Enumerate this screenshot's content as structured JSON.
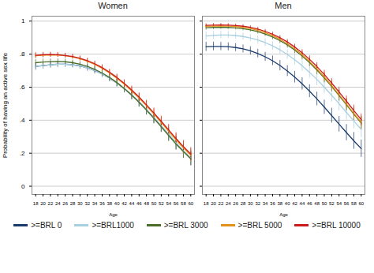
{
  "chart_data": [
    {
      "type": "line",
      "title": "Women",
      "xlabel": "Age",
      "ylabel": "Probability of having an active sex life",
      "x": [
        18,
        20,
        22,
        24,
        26,
        28,
        30,
        32,
        34,
        36,
        38,
        40,
        42,
        44,
        46,
        48,
        50,
        52,
        54,
        56,
        58,
        60
      ],
      "xlim": [
        17,
        61
      ],
      "xticks": [
        18,
        20,
        22,
        24,
        26,
        28,
        30,
        32,
        34,
        36,
        38,
        40,
        42,
        44,
        46,
        48,
        50,
        52,
        54,
        56,
        58,
        60
      ],
      "ylim": [
        -0.05,
        1.03
      ],
      "yticks": [
        0,
        {
          "value": 0.2,
          "label": ".2"
        },
        {
          "value": 0.4,
          "label": ".4"
        },
        {
          "value": 0.6,
          "label": ".6"
        },
        {
          "value": 0.8,
          "label": ".8"
        },
        1
      ],
      "grid": true,
      "legend": "bottom",
      "series": [
        {
          "name": ">=BRL 0",
          "color": "#1a3a6b",
          "values": [
            0.726,
            0.731,
            0.736,
            0.739,
            0.739,
            0.736,
            0.729,
            0.717,
            0.701,
            0.68,
            0.655,
            0.625,
            0.591,
            0.552,
            0.51,
            0.464,
            0.415,
            0.364,
            0.313,
            0.262,
            0.213,
            0.169
          ],
          "errors": [
            0.022,
            0.02,
            0.019,
            0.018,
            0.018,
            0.018,
            0.018,
            0.019,
            0.02,
            0.021,
            0.022,
            0.023,
            0.025,
            0.027,
            0.029,
            0.031,
            0.033,
            0.035,
            0.037,
            0.039,
            0.041,
            0.043
          ]
        },
        {
          "name": ">=BRL1000",
          "color": "#a8cfe0",
          "values": [
            0.726,
            0.731,
            0.736,
            0.739,
            0.739,
            0.736,
            0.729,
            0.717,
            0.701,
            0.68,
            0.655,
            0.625,
            0.591,
            0.552,
            0.51,
            0.464,
            0.415,
            0.364,
            0.313,
            0.262,
            0.213,
            0.169
          ],
          "errors": [
            0.022,
            0.02,
            0.019,
            0.018,
            0.018,
            0.018,
            0.018,
            0.019,
            0.02,
            0.021,
            0.022,
            0.023,
            0.025,
            0.027,
            0.029,
            0.031,
            0.033,
            0.035,
            0.037,
            0.039,
            0.041,
            0.043
          ]
        },
        {
          "name": ">=BRL 3000",
          "color": "#4a6e2a",
          "values": [
            0.748,
            0.752,
            0.755,
            0.756,
            0.754,
            0.748,
            0.739,
            0.726,
            0.708,
            0.686,
            0.659,
            0.628,
            0.592,
            0.552,
            0.508,
            0.461,
            0.411,
            0.36,
            0.307,
            0.256,
            0.209,
            0.166
          ],
          "errors": [
            0.02,
            0.018,
            0.017,
            0.016,
            0.016,
            0.016,
            0.016,
            0.017,
            0.018,
            0.019,
            0.02,
            0.022,
            0.024,
            0.026,
            0.028,
            0.03,
            0.032,
            0.034,
            0.036,
            0.038,
            0.04,
            0.042
          ]
        },
        {
          "name": ">=BRL 5000",
          "color": "#e0921a",
          "values": [
            0.79,
            0.793,
            0.795,
            0.794,
            0.79,
            0.783,
            0.772,
            0.757,
            0.738,
            0.714,
            0.686,
            0.654,
            0.618,
            0.577,
            0.534,
            0.487,
            0.437,
            0.386,
            0.333,
            0.281,
            0.232,
            0.187
          ],
          "errors": [
            0.016,
            0.015,
            0.014,
            0.014,
            0.014,
            0.014,
            0.014,
            0.015,
            0.016,
            0.017,
            0.018,
            0.02,
            0.022,
            0.024,
            0.026,
            0.028,
            0.03,
            0.032,
            0.034,
            0.036,
            0.038,
            0.04
          ]
        },
        {
          "name": ">=BRL 10000",
          "color": "#cc1a1a",
          "values": [
            0.793,
            0.796,
            0.797,
            0.796,
            0.792,
            0.786,
            0.775,
            0.761,
            0.742,
            0.719,
            0.691,
            0.659,
            0.623,
            0.583,
            0.54,
            0.493,
            0.444,
            0.393,
            0.341,
            0.289,
            0.24,
            0.195
          ],
          "errors": [
            0.016,
            0.015,
            0.014,
            0.014,
            0.014,
            0.014,
            0.014,
            0.015,
            0.016,
            0.017,
            0.018,
            0.02,
            0.022,
            0.024,
            0.026,
            0.028,
            0.03,
            0.032,
            0.034,
            0.036,
            0.038,
            0.04
          ]
        }
      ]
    },
    {
      "type": "line",
      "title": "Men",
      "xlabel": "Age",
      "x": [
        18,
        20,
        22,
        24,
        26,
        28,
        30,
        32,
        34,
        36,
        38,
        40,
        42,
        44,
        46,
        48,
        50,
        52,
        54,
        56,
        58,
        60
      ],
      "xlim": [
        17,
        61
      ],
      "xticks": [
        18,
        20,
        22,
        24,
        26,
        28,
        30,
        32,
        34,
        36,
        38,
        40,
        42,
        44,
        46,
        48,
        50,
        52,
        54,
        56,
        58,
        60
      ],
      "ylim": [
        -0.05,
        1.03
      ],
      "yticks": [
        0,
        0.2,
        0.4,
        0.6,
        0.8,
        1
      ],
      "tick_labels": "x",
      "grid": true,
      "legend": "bottom",
      "series": [
        {
          "name": ">=BRL 0",
          "color": "#1a3a6b",
          "values": [
            0.845,
            0.847,
            0.847,
            0.845,
            0.84,
            0.832,
            0.82,
            0.804,
            0.784,
            0.76,
            0.731,
            0.698,
            0.661,
            0.62,
            0.576,
            0.529,
            0.479,
            0.428,
            0.376,
            0.325,
            0.275,
            0.228
          ],
          "errors": [
            0.028,
            0.026,
            0.025,
            0.024,
            0.024,
            0.024,
            0.025,
            0.026,
            0.027,
            0.029,
            0.031,
            0.033,
            0.035,
            0.037,
            0.039,
            0.041,
            0.043,
            0.045,
            0.047,
            0.049,
            0.051,
            0.053
          ]
        },
        {
          "name": ">=BRL1000",
          "color": "#a8cfe0",
          "values": [
            0.91,
            0.914,
            0.916,
            0.916,
            0.913,
            0.907,
            0.898,
            0.886,
            0.87,
            0.85,
            0.826,
            0.798,
            0.766,
            0.73,
            0.69,
            0.647,
            0.6,
            0.551,
            0.5,
            0.447,
            0.395,
            0.344
          ],
          "errors": [
            0.025,
            0.023,
            0.022,
            0.021,
            0.021,
            0.021,
            0.022,
            0.023,
            0.024,
            0.025,
            0.027,
            0.029,
            0.031,
            0.033,
            0.035,
            0.037,
            0.039,
            0.041,
            0.043,
            0.045,
            0.047,
            0.049
          ]
        },
        {
          "name": ">=BRL 3000",
          "color": "#4a6e2a",
          "values": [
            0.96,
            0.962,
            0.963,
            0.962,
            0.959,
            0.954,
            0.947,
            0.936,
            0.922,
            0.904,
            0.882,
            0.856,
            0.825,
            0.789,
            0.749,
            0.704,
            0.656,
            0.604,
            0.549,
            0.493,
            0.437,
            0.382
          ],
          "errors": [
            0.014,
            0.013,
            0.012,
            0.012,
            0.012,
            0.012,
            0.013,
            0.014,
            0.015,
            0.016,
            0.017,
            0.019,
            0.021,
            0.023,
            0.025,
            0.027,
            0.029,
            0.031,
            0.033,
            0.035,
            0.037,
            0.039
          ]
        },
        {
          "name": ">=BRL 5000",
          "color": "#e0921a",
          "values": [
            0.968,
            0.97,
            0.971,
            0.97,
            0.967,
            0.962,
            0.955,
            0.944,
            0.93,
            0.912,
            0.89,
            0.863,
            0.832,
            0.796,
            0.756,
            0.711,
            0.662,
            0.61,
            0.555,
            0.498,
            0.442,
            0.387
          ],
          "errors": [
            0.012,
            0.011,
            0.011,
            0.011,
            0.011,
            0.011,
            0.012,
            0.013,
            0.014,
            0.015,
            0.016,
            0.018,
            0.02,
            0.022,
            0.024,
            0.026,
            0.028,
            0.03,
            0.032,
            0.034,
            0.036,
            0.038
          ]
        },
        {
          "name": ">=BRL 10000",
          "color": "#cc1a1a",
          "values": [
            0.974,
            0.976,
            0.977,
            0.976,
            0.973,
            0.969,
            0.962,
            0.952,
            0.938,
            0.921,
            0.899,
            0.874,
            0.843,
            0.808,
            0.769,
            0.725,
            0.677,
            0.625,
            0.571,
            0.515,
            0.458,
            0.403
          ],
          "errors": [
            0.01,
            0.01,
            0.009,
            0.009,
            0.009,
            0.01,
            0.01,
            0.011,
            0.012,
            0.013,
            0.014,
            0.016,
            0.018,
            0.02,
            0.022,
            0.024,
            0.026,
            0.028,
            0.03,
            0.032,
            0.034,
            0.036
          ]
        }
      ]
    }
  ]
}
